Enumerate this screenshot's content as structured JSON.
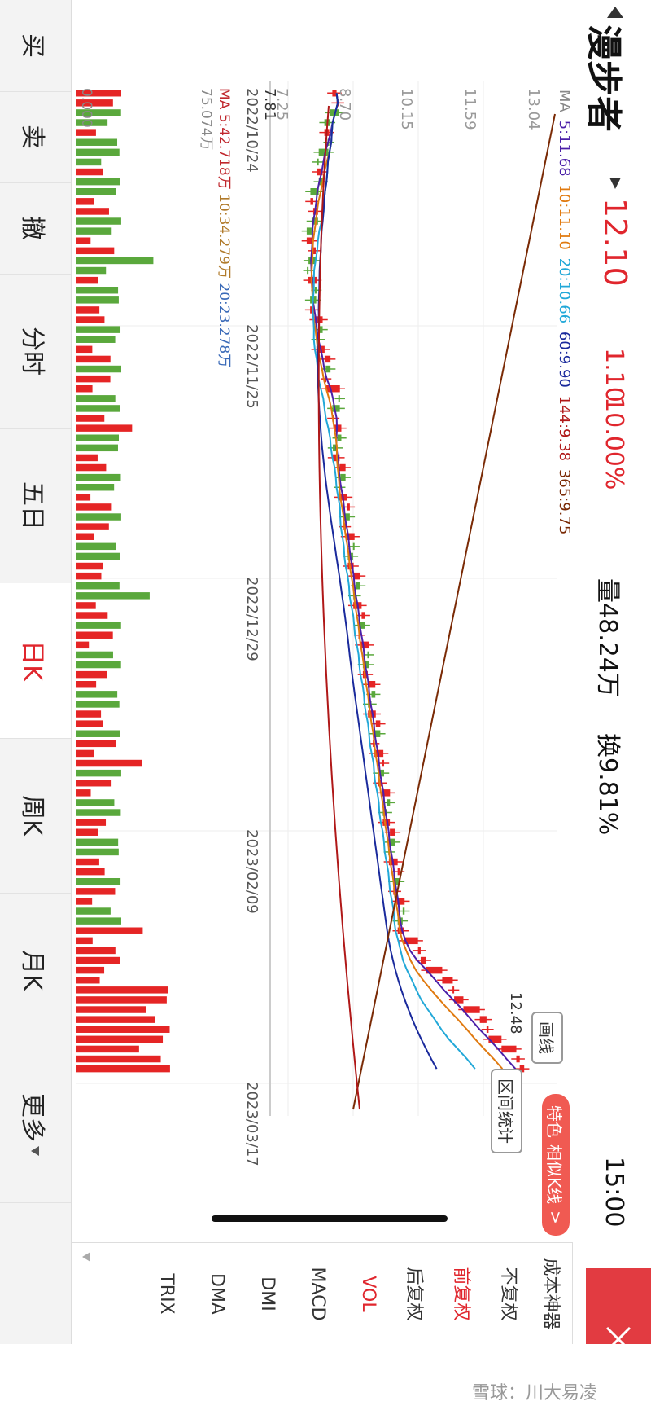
{
  "header": {
    "back_icon": "triangle-left-icon",
    "stock_name": "漫步者",
    "dropdown_icon": "triangle-down-icon",
    "price": "12.10",
    "change": "1.10",
    "change_pct": "10.00%",
    "volume": "量48.24万",
    "turnover": "换9.81%",
    "time": "15:00",
    "close_icon": "close-x-icon",
    "accent_color": "#e0262d",
    "close_bg_color": "#e23b41"
  },
  "chart": {
    "ma_legend": {
      "label": "MA",
      "ma5": "5:11.68",
      "ma10": "10:11.10",
      "ma20": "20:10.66",
      "ma60": "60:9.90",
      "ma144": "144:9.38",
      "ma365": "365:9.75",
      "colors": {
        "ma5": "#4b1fa8",
        "ma10": "#e07a10",
        "ma20": "#22a8d8",
        "ma60": "#1a2a9c",
        "ma144": "#b01818",
        "ma365": "#7a2a05"
      }
    },
    "y_labels": [
      "13.04",
      "11.59",
      "10.15",
      "8.70",
      "7.25"
    ],
    "high_marker": "12.48",
    "low_marker": "7.81",
    "dates": [
      "2022/10/24",
      "2022/11/25",
      "2022/12/29",
      "2023/02/09",
      "2023/03/17"
    ],
    "vol_legend": {
      "ma5": "MA 5:42.718万",
      "ma10": "10:34.279万",
      "ma20": "20:23.278万"
    },
    "vol_max": "75.074万",
    "vol_zero": "0.000",
    "buttons": {
      "draw_line": "画线",
      "range_stats": "区间统计"
    },
    "special": {
      "tag": "特色",
      "label": "相似K线",
      "arrow": ">"
    },
    "up_color": "#e52525",
    "down_color": "#5aa83c"
  },
  "side_menu": {
    "items": [
      "成本神器",
      "不复权",
      "前复权",
      "后复权",
      "VOL",
      "MACD",
      "DMI",
      "DMA",
      "TRIX"
    ],
    "active_adjust": "前复权",
    "active_indicator": "VOL",
    "more_icon": "triangle-down-icon"
  },
  "tabs": [
    "买",
    "卖",
    "撤",
    "分时",
    "五日",
    "日K",
    "周K",
    "月K",
    "更多"
  ],
  "active_tab": "日K",
  "watermark": "雪球：川大易凌"
}
